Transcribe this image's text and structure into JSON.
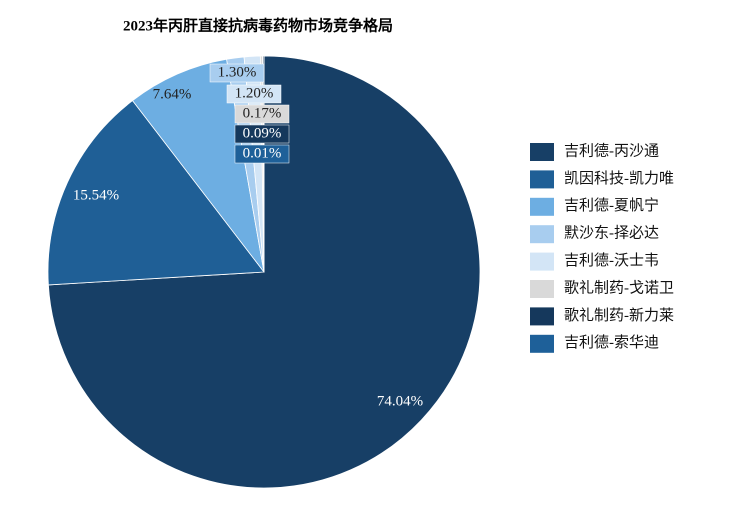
{
  "chart_data": {
    "type": "pie",
    "title": "2023年丙肝直接抗病毒药物市场竞争格局",
    "categories": [
      "吉利德-丙沙通",
      "凯因科技-凯力唯",
      "吉利德-夏帆宁",
      "默沙东-择必达",
      "吉利德-沃士韦",
      "歌礼制药-戈诺卫",
      "歌礼制药-新力莱",
      "吉利德-索华迪"
    ],
    "values": [
      74.04,
      15.54,
      7.64,
      1.3,
      1.2,
      0.17,
      0.09,
      0.01
    ],
    "value_labels": [
      "74.04%",
      "15.54%",
      "7.64%",
      "1.30%",
      "1.20%",
      "0.17%",
      "0.09%",
      "0.01%"
    ],
    "colors": [
      "#173f66",
      "#1f5f96",
      "#6daee2",
      "#a8cdef",
      "#d3e5f6",
      "#d9d9d9",
      "#15385c",
      "#1e6099"
    ],
    "legend": "right"
  }
}
